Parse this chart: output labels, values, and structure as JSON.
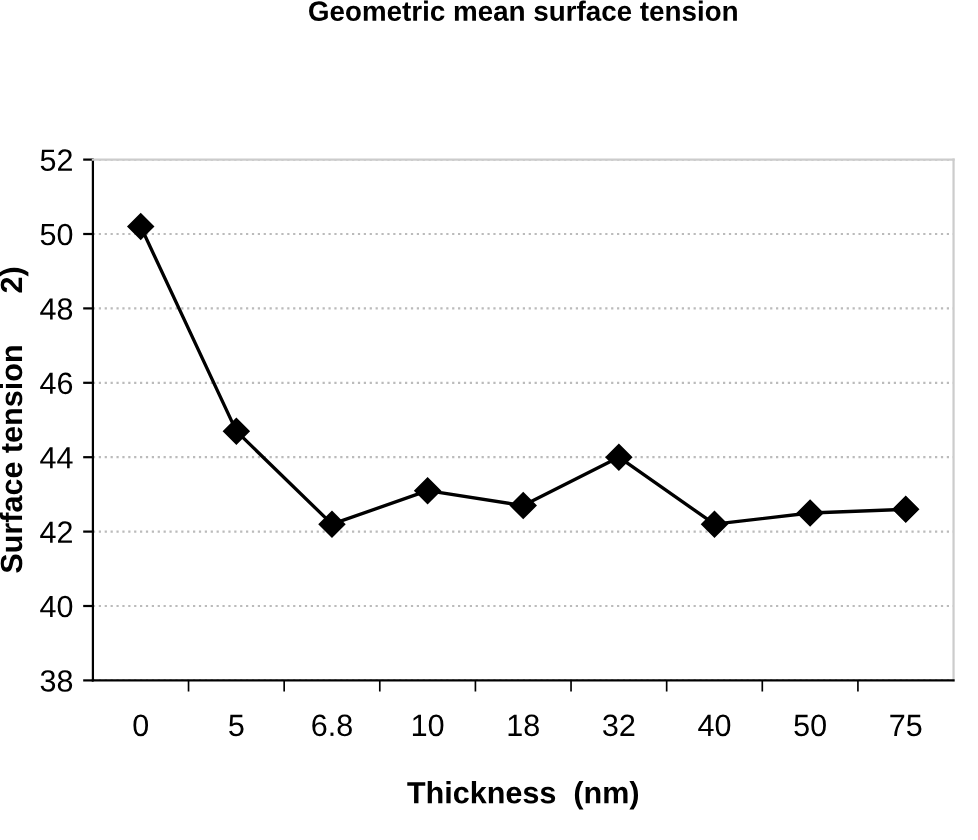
{
  "chart_data": {
    "type": "line",
    "title": "Geometric mean surface tension",
    "xlabel": "Thickness  (nm)",
    "ylabel": "Surface tension      2)",
    "categories": [
      "0",
      "5",
      "6.8",
      "10",
      "18",
      "32",
      "40",
      "50",
      "75"
    ],
    "series": [
      {
        "color": "#000000",
        "values": [
          50.2,
          44.7,
          42.2,
          43.1,
          42.7,
          44.0,
          42.2,
          42.5,
          42.6
        ]
      }
    ],
    "ylim": [
      38,
      52
    ],
    "yticks": [
      38,
      40,
      42,
      44,
      46,
      48,
      50,
      52
    ],
    "grid": "y",
    "marker": "diamond",
    "line_style": "solid"
  }
}
